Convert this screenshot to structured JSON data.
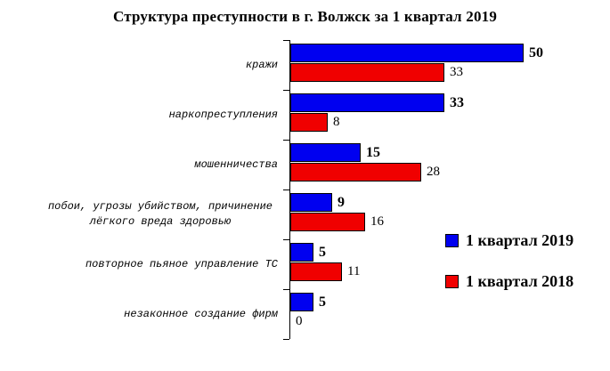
{
  "title": "Структура преступности в г. Волжск за 1 квартал 2019",
  "colors": {
    "series_2019": "#0000f0",
    "series_2018": "#f00000",
    "axis": "#000000",
    "background": "#ffffff",
    "text": "#000000"
  },
  "legend": {
    "items": [
      {
        "label": "1 квартал 2019",
        "color": "#0000f0"
      },
      {
        "label": "1 квартал 2018",
        "color": "#f00000"
      }
    ]
  },
  "chart_data": {
    "type": "bar",
    "orientation": "horizontal",
    "title": "Структура преступности в г. Волжск за 1 квартал 2019",
    "categories": [
      "кражи",
      "наркопреступления",
      "мошенничества",
      "побои, угрозы убийством, причинение\nлёгкого вреда здоровью",
      "повторное пьяное управление ТС",
      "незаконное создание фирм"
    ],
    "series": [
      {
        "name": "1 квартал 2019",
        "color": "#0000f0",
        "bold_labels": true,
        "values": [
          50,
          33,
          15,
          9,
          5,
          5
        ]
      },
      {
        "name": "1 квартал 2018",
        "color": "#f00000",
        "bold_labels": false,
        "values": [
          33,
          8,
          28,
          16,
          11,
          0
        ]
      }
    ],
    "xlim": [
      0,
      55
    ],
    "grid": false,
    "value_labels": true,
    "legend_position": "right-bottom"
  }
}
